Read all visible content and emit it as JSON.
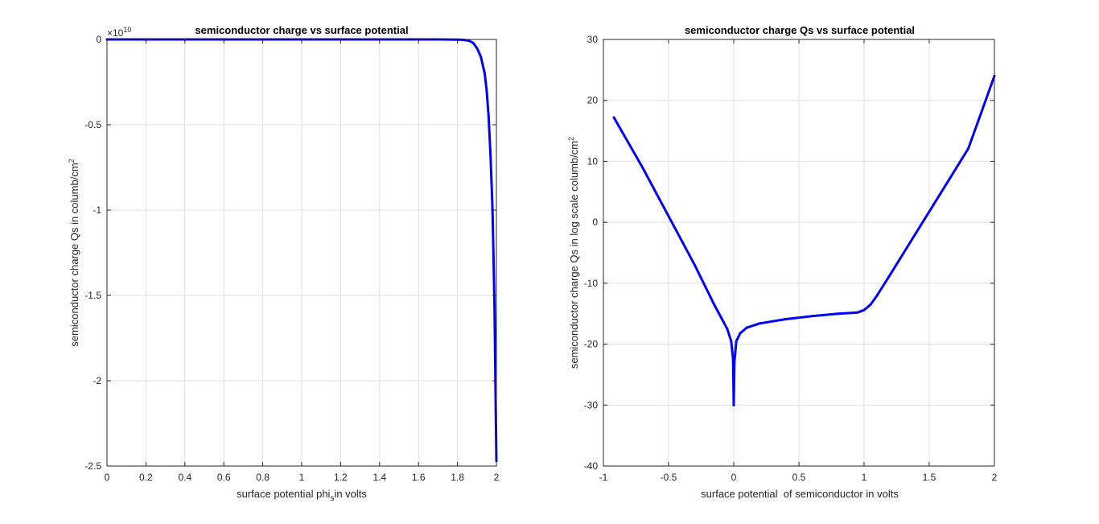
{
  "figure": {
    "colors": {
      "series": "#0000ff",
      "axis": "#262626",
      "grid": "#dfdfdf",
      "background": "#ffffff"
    }
  },
  "chart_data": [
    {
      "type": "line",
      "title": "semiconductor charge vs surface potential",
      "xlabel": "surface potential phi",
      "xlabel_sub": "s",
      "xlabel_rest": "in volts",
      "ylabel": "semiconductor charge Qs in columb/cm",
      "ylabel_sup": "2",
      "exponent_label": "×10",
      "exponent_value": "10",
      "xlim": [
        0,
        2
      ],
      "ylim": [
        -2.5,
        0
      ],
      "xticks": [
        "0",
        "0.2",
        "0.4",
        "0.6",
        "0.8",
        "1",
        "1.2",
        "1.4",
        "1.6",
        "1.8",
        "2"
      ],
      "xtick_values": [
        0,
        0.2,
        0.4,
        0.6,
        0.8,
        1.0,
        1.2,
        1.4,
        1.6,
        1.8,
        2.0
      ],
      "yticks": [
        "-2.5",
        "-2",
        "-1.5",
        "-1",
        "-0.5",
        "0"
      ],
      "ytick_values": [
        -2.5,
        -2.0,
        -1.5,
        -1.0,
        -0.5,
        0
      ],
      "grid": true,
      "series": [
        {
          "color": "#0000ff",
          "x": [
            0,
            0.5,
            1.0,
            1.5,
            1.7,
            1.8,
            1.82,
            1.84,
            1.86,
            1.88,
            1.9,
            1.92,
            1.94,
            1.95,
            1.96,
            1.97,
            1.98,
            1.99,
            2.0
          ],
          "y": [
            0,
            0,
            0,
            0,
            0,
            -0.001,
            -0.002,
            -0.004,
            -0.008,
            -0.02,
            -0.05,
            -0.1,
            -0.2,
            -0.3,
            -0.45,
            -0.68,
            -1.0,
            -1.55,
            -2.47
          ]
        }
      ]
    },
    {
      "type": "line",
      "title": "semiconductor charge Qs vs surface potential",
      "xlabel": "surface potential  of semiconductor in volts",
      "ylabel": "semiconductor charge Qs in log scale columb/cm",
      "ylabel_sup": "2",
      "xlim": [
        -1,
        2
      ],
      "ylim": [
        -40,
        30
      ],
      "xticks": [
        "-1",
        "-0.5",
        "0",
        "0.5",
        "1",
        "1.5",
        "2"
      ],
      "xtick_values": [
        -1,
        -0.5,
        0,
        0.5,
        1,
        1.5,
        2
      ],
      "yticks": [
        "-40",
        "-30",
        "-20",
        "-10",
        "0",
        "10",
        "20",
        "30"
      ],
      "ytick_values": [
        -40,
        -30,
        -20,
        -10,
        0,
        10,
        20,
        30
      ],
      "grid": true,
      "series": [
        {
          "color": "#0000ff",
          "x": [
            -0.92,
            -0.7,
            -0.5,
            -0.3,
            -0.15,
            -0.1,
            -0.05,
            -0.02,
            -0.005,
            0,
            0.005,
            0.02,
            0.05,
            0.1,
            0.2,
            0.4,
            0.6,
            0.8,
            0.95,
            1.0,
            1.05,
            1.1,
            1.2,
            1.4,
            1.6,
            1.8,
            2.0
          ],
          "y": [
            17.2,
            9.0,
            1.0,
            -7.0,
            -13.5,
            -15.5,
            -17.5,
            -19.5,
            -22.5,
            -30.0,
            -23.0,
            -19.5,
            -18.2,
            -17.3,
            -16.6,
            -15.9,
            -15.4,
            -15.0,
            -14.8,
            -14.4,
            -13.5,
            -12.0,
            -8.6,
            -1.7,
            5.2,
            12.1,
            24.0
          ]
        }
      ]
    }
  ]
}
